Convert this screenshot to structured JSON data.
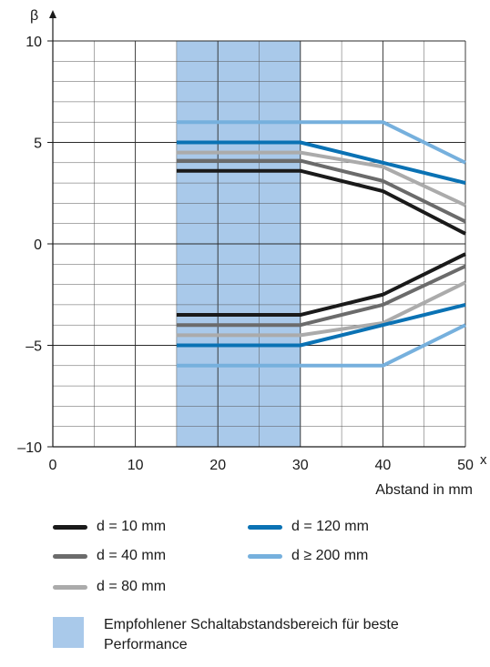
{
  "chart_data": {
    "type": "line",
    "xlabel": "Abstand in mm",
    "ylabel": "β",
    "x_axis_letter": "x",
    "xlim": [
      0,
      50
    ],
    "ylim": [
      -10,
      10
    ],
    "x_ticks": [
      "0",
      "10",
      "20",
      "30",
      "40",
      "50"
    ],
    "y_ticks": [
      "10",
      "5",
      "0",
      "–5",
      "–10"
    ],
    "x_tick_values": [
      0,
      10,
      20,
      30,
      40,
      50
    ],
    "y_tick_values": [
      10,
      5,
      0,
      -5,
      -10
    ],
    "grid": true,
    "highlight_region": {
      "x": [
        15,
        30
      ],
      "color": "#a9c9ea"
    },
    "series": [
      {
        "name": "d = 10 mm",
        "color": "#1a1a1a",
        "upper": {
          "x": [
            15,
            30,
            40,
            50
          ],
          "y": [
            3.6,
            3.6,
            2.6,
            0.5
          ]
        },
        "lower": {
          "x": [
            15,
            30,
            40,
            50
          ],
          "y": [
            -3.5,
            -3.5,
            -2.5,
            -0.5
          ]
        }
      },
      {
        "name": "d = 40 mm",
        "color": "#6b6b6b",
        "upper": {
          "x": [
            15,
            30,
            40,
            50
          ],
          "y": [
            4.1,
            4.1,
            3.1,
            1.1
          ]
        },
        "lower": {
          "x": [
            15,
            30,
            40,
            50
          ],
          "y": [
            -4.0,
            -4.0,
            -3.0,
            -1.1
          ]
        }
      },
      {
        "name": "d = 80 mm",
        "color": "#ababab",
        "upper": {
          "x": [
            15,
            30,
            40,
            50
          ],
          "y": [
            4.5,
            4.5,
            3.8,
            1.9
          ]
        },
        "lower": {
          "x": [
            15,
            30,
            40,
            50
          ],
          "y": [
            -4.5,
            -4.5,
            -3.9,
            -1.9
          ]
        }
      },
      {
        "name": "d = 120 mm",
        "color": "#0a72b4",
        "upper": {
          "x": [
            15,
            30,
            40,
            50
          ],
          "y": [
            5.0,
            5.0,
            4.0,
            3.0
          ]
        },
        "lower": {
          "x": [
            15,
            30,
            40,
            50
          ],
          "y": [
            -5.0,
            -5.0,
            -4.0,
            -3.0
          ]
        }
      },
      {
        "name": "d ≥ 200 mm",
        "color": "#76b0dd",
        "upper": {
          "x": [
            15,
            30,
            40,
            50
          ],
          "y": [
            6.0,
            6.0,
            6.0,
            4.0
          ]
        },
        "lower": {
          "x": [
            15,
            30,
            40,
            50
          ],
          "y": [
            -6.0,
            -6.0,
            -6.0,
            -4.0
          ]
        }
      }
    ]
  },
  "legend": {
    "items": [
      "d = 10 mm",
      "d = 120 mm",
      "d = 40 mm",
      "d ≥ 200 mm",
      "d = 80 mm"
    ],
    "colors": [
      "#1a1a1a",
      "#0a72b4",
      "#6b6b6b",
      "#76b0dd",
      "#ababab"
    ],
    "region_label": "Empfohlener Schaltabstandsbereich für beste Performance"
  }
}
